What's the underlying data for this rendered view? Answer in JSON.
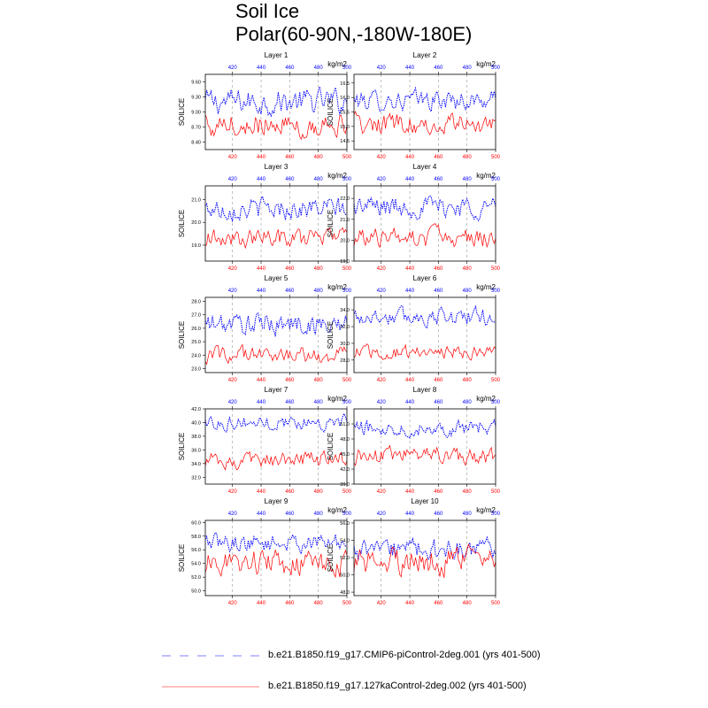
{
  "title": {
    "line1": "Soil Ice",
    "line2": "Polar(60-90N,-180W-180E)"
  },
  "colors": {
    "series_a": "#0000ff",
    "series_b": "#ff0000",
    "axis": "#000000",
    "grid": "#999999"
  },
  "legend": [
    {
      "label": "b.e21.B1850.f19_g17.CMIP6-piControl-2deg.001 (yrs 401-500)",
      "color": "#7f7fff",
      "style": "dashed"
    },
    {
      "label": "b.e21.B1850.f19_g17.127kaControl-2deg.002 (yrs 401-500)",
      "color": "#ff7f7f",
      "style": "solid"
    }
  ],
  "chart_data": [
    {
      "type": "line",
      "title": "Layer 1",
      "units": "kg/m2",
      "ylabel": "SOILICE",
      "xlim": [
        401,
        500
      ],
      "ylim": [
        8.25,
        9.75
      ],
      "xticks": [
        420,
        440,
        460,
        480,
        500
      ],
      "yticks": [
        "9.60",
        "9.30",
        "9.00",
        "8.70",
        "8.40"
      ],
      "yvals": [
        9.6,
        9.3,
        9.0,
        8.7,
        8.4
      ],
      "series": [
        {
          "name": "b.e21.B1850.f19_g17.CMIP6-piControl-2deg.001",
          "mean": 9.2,
          "amp": 0.22
        },
        {
          "name": "b.e21.B1850.f19_g17.127kaControl-2deg.002",
          "mean": 8.75,
          "amp": 0.2
        }
      ]
    },
    {
      "type": "line",
      "title": "Layer 2",
      "units": "kg/m2",
      "ylabel": "SOILICE",
      "xlim": [
        401,
        500
      ],
      "ylim": [
        14.2,
        16.8
      ],
      "xticks": [
        420,
        440,
        460,
        480,
        500
      ],
      "yticks": [
        "16.5",
        "16.0",
        "15.5",
        "15.0",
        "14.5"
      ],
      "yvals": [
        16.5,
        16.0,
        15.5,
        15.0,
        14.5
      ],
      "series": [
        {
          "name": "b.e21.B1850.f19_g17.CMIP6-piControl-2deg.001",
          "mean": 15.9,
          "amp": 0.3
        },
        {
          "name": "b.e21.B1850.f19_g17.127kaControl-2deg.002",
          "mean": 15.1,
          "amp": 0.3
        }
      ]
    },
    {
      "type": "line",
      "title": "Layer 3",
      "units": "kg/m2",
      "ylabel": "SOILICE",
      "xlim": [
        401,
        500
      ],
      "ylim": [
        18.3,
        21.6
      ],
      "xticks": [
        420,
        440,
        460,
        480,
        500
      ],
      "yticks": [
        "21.0",
        "20.0",
        "19.0"
      ],
      "yvals": [
        21.0,
        20.0,
        19.0
      ],
      "series": [
        {
          "name": "b.e21.B1850.f19_g17.CMIP6-piControl-2deg.001",
          "mean": 20.6,
          "amp": 0.4
        },
        {
          "name": "b.e21.B1850.f19_g17.127kaControl-2deg.002",
          "mean": 19.3,
          "amp": 0.35
        }
      ]
    },
    {
      "type": "line",
      "title": "Layer 4",
      "units": "kg/m2",
      "ylabel": "SOILICE",
      "xlim": [
        401,
        500
      ],
      "ylim": [
        19.0,
        22.6
      ],
      "xticks": [
        420,
        440,
        460,
        480,
        500
      ],
      "yticks": [
        "22.0",
        "21.0",
        "20.0",
        "19.0"
      ],
      "yvals": [
        22.0,
        21.0,
        20.0,
        19.0
      ],
      "series": [
        {
          "name": "b.e21.B1850.f19_g17.CMIP6-piControl-2deg.001",
          "mean": 21.6,
          "amp": 0.45
        },
        {
          "name": "b.e21.B1850.f19_g17.127kaControl-2deg.002",
          "mean": 20.1,
          "amp": 0.4
        }
      ]
    },
    {
      "type": "line",
      "title": "Layer 5",
      "units": "kg/m2",
      "ylabel": "SOILICE",
      "xlim": [
        401,
        500
      ],
      "ylim": [
        22.7,
        28.3
      ],
      "xticks": [
        420,
        440,
        460,
        480,
        500
      ],
      "yticks": [
        "28.0",
        "27.0",
        "26.0",
        "25.0",
        "24.0",
        "23.0"
      ],
      "yvals": [
        28.0,
        27.0,
        26.0,
        25.0,
        24.0,
        23.0
      ],
      "series": [
        {
          "name": "b.e21.B1850.f19_g17.CMIP6-piControl-2deg.001",
          "mean": 26.3,
          "amp": 0.7
        },
        {
          "name": "b.e21.B1850.f19_g17.127kaControl-2deg.002",
          "mean": 24.0,
          "amp": 0.5
        }
      ]
    },
    {
      "type": "line",
      "title": "Layer 6",
      "units": "kg/m2",
      "ylabel": "SOILICE",
      "xlim": [
        401,
        500
      ],
      "ylim": [
        26.5,
        35.5
      ],
      "xticks": [
        420,
        440,
        460,
        480,
        500
      ],
      "yticks": [
        "34.0",
        "32.0",
        "30.0",
        "28.0"
      ],
      "yvals": [
        34.0,
        32.0,
        30.0,
        28.0
      ],
      "series": [
        {
          "name": "b.e21.B1850.f19_g17.CMIP6-piControl-2deg.001",
          "mean": 33.2,
          "amp": 0.9
        },
        {
          "name": "b.e21.B1850.f19_g17.127kaControl-2deg.002",
          "mean": 28.9,
          "amp": 0.7
        }
      ]
    },
    {
      "type": "line",
      "title": "Layer 7",
      "units": "kg/m2",
      "ylabel": "SOILICE",
      "xlim": [
        401,
        500
      ],
      "ylim": [
        31.0,
        42.0
      ],
      "xticks": [
        420,
        440,
        460,
        480,
        500
      ],
      "yticks": [
        "42.0",
        "40.0",
        "38.0",
        "36.0",
        "34.0",
        "32.0"
      ],
      "yvals": [
        42.0,
        40.0,
        38.0,
        36.0,
        34.0,
        32.0
      ],
      "series": [
        {
          "name": "b.e21.B1850.f19_g17.CMIP6-piControl-2deg.001",
          "mean": 40.0,
          "amp": 0.9
        },
        {
          "name": "b.e21.B1850.f19_g17.127kaControl-2deg.002",
          "mean": 34.5,
          "amp": 1.0
        }
      ]
    },
    {
      "type": "line",
      "title": "Layer 8",
      "units": "kg/m2",
      "ylabel": "SOILICE",
      "xlim": [
        401,
        500
      ],
      "ylim": [
        39.0,
        54.0
      ],
      "xticks": [
        420,
        440,
        460,
        480,
        500
      ],
      "yticks": [
        "51.0",
        "48.0",
        "45.0",
        "42.0",
        "39.0"
      ],
      "yvals": [
        51.0,
        48.0,
        45.0,
        42.0,
        39.0
      ],
      "series": [
        {
          "name": "b.e21.B1850.f19_g17.CMIP6-piControl-2deg.001",
          "mean": 50.2,
          "amp": 1.3
        },
        {
          "name": "b.e21.B1850.f19_g17.127kaControl-2deg.002",
          "mean": 44.5,
          "amp": 1.5
        }
      ]
    },
    {
      "type": "line",
      "title": "Layer 9",
      "units": "kg/m2",
      "ylabel": "SOILICE",
      "xlim": [
        401,
        500
      ],
      "ylim": [
        49.3,
        60.3
      ],
      "xticks": [
        420,
        440,
        460,
        480,
        500
      ],
      "yticks": [
        "60.0",
        "58.0",
        "56.0",
        "54.0",
        "52.0",
        "50.0"
      ],
      "yvals": [
        60.0,
        58.0,
        56.0,
        54.0,
        52.0,
        50.0
      ],
      "series": [
        {
          "name": "b.e21.B1850.f19_g17.CMIP6-piControl-2deg.001",
          "mean": 57.0,
          "amp": 1.1
        },
        {
          "name": "b.e21.B1850.f19_g17.127kaControl-2deg.002",
          "mean": 54.0,
          "amp": 1.6
        }
      ]
    },
    {
      "type": "line",
      "title": "Layer 10",
      "units": "kg/m2",
      "ylabel": "SOILICE",
      "xlim": [
        401,
        500
      ],
      "ylim": [
        47.6,
        56.3
      ],
      "xticks": [
        420,
        440,
        460,
        480,
        500
      ],
      "yticks": [
        "56.0",
        "54.0",
        "52.0",
        "50.0",
        "48.0"
      ],
      "yvals": [
        56.0,
        54.0,
        52.0,
        50.0,
        48.0
      ],
      "series": [
        {
          "name": "b.e21.B1850.f19_g17.CMIP6-piControl-2deg.001",
          "mean": 52.8,
          "amp": 1.1
        },
        {
          "name": "b.e21.B1850.f19_g17.127kaControl-2deg.002",
          "mean": 51.5,
          "amp": 1.4
        }
      ]
    }
  ]
}
